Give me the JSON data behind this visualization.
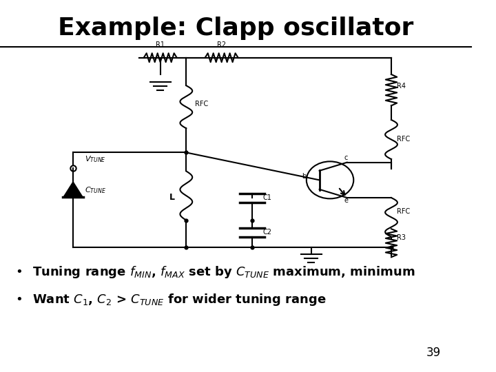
{
  "title": "Example: Clapp oscillator",
  "title_fontsize": 26,
  "title_fontweight": "bold",
  "bg_color": "#ffffff",
  "line_color": "#000000",
  "bullet1": "Tuning range $f_{MIN}$, $f_{MAX}$ set by $C_{TUNE}$ maximum, minimum",
  "bullet2": "Want $C_1$, $C_2$ > $C_{TUNE}$ for wider tuning range",
  "page_number": "39"
}
